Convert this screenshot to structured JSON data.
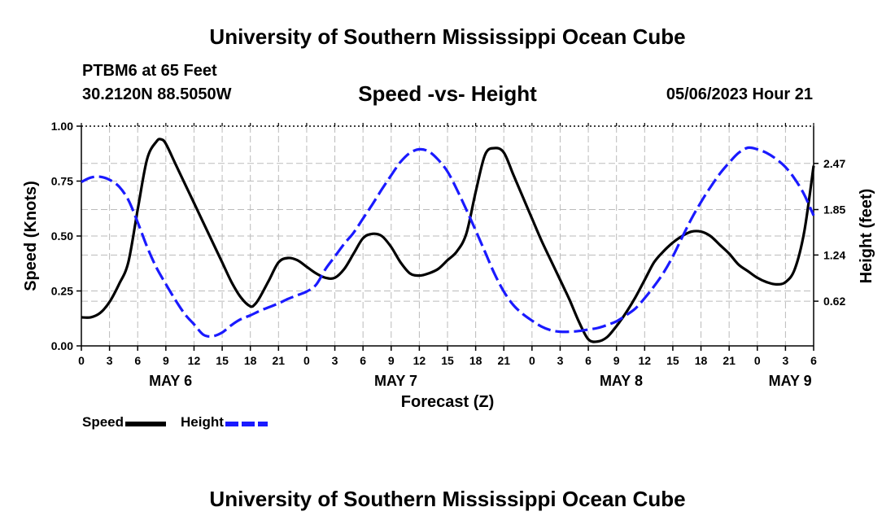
{
  "header": {
    "title": "University of Southern Mississippi Ocean Cube",
    "station": "PTBM6 at 65 Feet",
    "coords": "30.2120N  88.5050W",
    "chart_title": "Speed -vs- Height",
    "timestamp": "05/06/2023 Hour 21"
  },
  "footer": {
    "title": "University of Southern Mississippi Ocean Cube"
  },
  "legend": {
    "speed_label": "Speed",
    "height_label": "Height"
  },
  "colors": {
    "speed": "#000000",
    "height": "#1a1aff",
    "grid": "#bbbbbb"
  },
  "chart_data": {
    "type": "line",
    "title": "Speed -vs- Height",
    "xlabel": "Forecast (Z)",
    "ylabel": "Speed (Knots)",
    "y2label": "Height (feet)",
    "xlim": [
      0,
      78
    ],
    "ylim": [
      0,
      1.0
    ],
    "y2lim": [
      0.02,
      2.97
    ],
    "x_ticks": [
      0,
      3,
      6,
      9,
      12,
      15,
      18,
      21,
      24,
      27,
      30,
      33,
      36,
      39,
      42,
      45,
      48,
      51,
      54,
      57,
      60,
      63,
      66,
      69,
      72,
      75,
      78
    ],
    "x_tick_labels": [
      "0",
      "3",
      "6",
      "9",
      "12",
      "15",
      "18",
      "21",
      "0",
      "3",
      "6",
      "9",
      "12",
      "15",
      "18",
      "21",
      "0",
      "3",
      "6",
      "9",
      "12",
      "15",
      "18",
      "21",
      "0",
      "3",
      "6"
    ],
    "day_labels": [
      {
        "x": 9.5,
        "label": "MAY 6"
      },
      {
        "x": 33.5,
        "label": "MAY 7"
      },
      {
        "x": 57.5,
        "label": "MAY 8"
      },
      {
        "x": 75.5,
        "label": "MAY 9"
      }
    ],
    "y_ticks": [
      0.0,
      0.25,
      0.5,
      0.75,
      1.0
    ],
    "y_tick_labels": [
      "0.00",
      "0.25",
      "0.50",
      "0.75",
      "1.00"
    ],
    "y2_ticks": [
      0.62,
      1.24,
      1.85,
      2.47
    ],
    "y2_tick_labels": [
      "0.62",
      "1.24",
      "1.85",
      "2.47"
    ],
    "series": [
      {
        "name": "Speed",
        "axis": "left",
        "style": "solid",
        "x": [
          0,
          1,
          2,
          3,
          4,
          5,
          6,
          7,
          8,
          8.5,
          9,
          10,
          11,
          12,
          13,
          14,
          15,
          16,
          17,
          18,
          18.5,
          19,
          20,
          21,
          22,
          23,
          24,
          25,
          26,
          27,
          28,
          29,
          30,
          31,
          32,
          33,
          34,
          35,
          36,
          37,
          38,
          39,
          40,
          41,
          42,
          43,
          44,
          45,
          46,
          47,
          48,
          49,
          50,
          51,
          52,
          53,
          54,
          55,
          56,
          57,
          58,
          59,
          60,
          61,
          62,
          63,
          64,
          65,
          66,
          67,
          68,
          69,
          70,
          71,
          72,
          73,
          74,
          75,
          76,
          77,
          78
        ],
        "values": [
          0.13,
          0.13,
          0.15,
          0.2,
          0.28,
          0.38,
          0.62,
          0.85,
          0.93,
          0.94,
          0.92,
          0.83,
          0.74,
          0.65,
          0.56,
          0.47,
          0.38,
          0.29,
          0.22,
          0.18,
          0.19,
          0.22,
          0.3,
          0.38,
          0.4,
          0.39,
          0.36,
          0.33,
          0.31,
          0.31,
          0.35,
          0.42,
          0.49,
          0.51,
          0.5,
          0.45,
          0.38,
          0.33,
          0.32,
          0.33,
          0.35,
          0.39,
          0.43,
          0.51,
          0.7,
          0.87,
          0.9,
          0.88,
          0.78,
          0.68,
          0.58,
          0.48,
          0.39,
          0.3,
          0.21,
          0.11,
          0.03,
          0.02,
          0.04,
          0.09,
          0.15,
          0.22,
          0.3,
          0.38,
          0.43,
          0.47,
          0.5,
          0.52,
          0.52,
          0.5,
          0.46,
          0.42,
          0.37,
          0.34,
          0.31,
          0.29,
          0.28,
          0.29,
          0.35,
          0.52,
          0.82
        ]
      },
      {
        "name": "Height",
        "axis": "right",
        "style": "dashed",
        "x": [
          0,
          1,
          2,
          3,
          4,
          5,
          6,
          7,
          8,
          9,
          10,
          11,
          12,
          13,
          14,
          15,
          16,
          17,
          18,
          19,
          20,
          21,
          22,
          23,
          24,
          25,
          26,
          27,
          28,
          29,
          30,
          31,
          32,
          33,
          34,
          35,
          36,
          37,
          38,
          39,
          40,
          41,
          42,
          43,
          44,
          45,
          46,
          47,
          48,
          49,
          50,
          51,
          52,
          53,
          54,
          55,
          56,
          57,
          58,
          59,
          60,
          61,
          62,
          63,
          64,
          65,
          66,
          67,
          68,
          69,
          70,
          71,
          72,
          73,
          74,
          75,
          76,
          77,
          78
        ],
        "values": [
          2.22,
          2.28,
          2.29,
          2.25,
          2.16,
          1.98,
          1.68,
          1.35,
          1.07,
          0.85,
          0.64,
          0.45,
          0.31,
          0.17,
          0.15,
          0.2,
          0.3,
          0.38,
          0.43,
          0.49,
          0.54,
          0.59,
          0.65,
          0.7,
          0.75,
          0.84,
          1.05,
          1.22,
          1.39,
          1.54,
          1.73,
          1.92,
          2.12,
          2.31,
          2.49,
          2.61,
          2.66,
          2.63,
          2.52,
          2.36,
          2.12,
          1.85,
          1.57,
          1.28,
          0.99,
          0.75,
          0.57,
          0.45,
          0.36,
          0.28,
          0.23,
          0.21,
          0.21,
          0.22,
          0.24,
          0.26,
          0.3,
          0.35,
          0.43,
          0.52,
          0.66,
          0.82,
          1.0,
          1.22,
          1.48,
          1.73,
          1.95,
          2.15,
          2.33,
          2.48,
          2.61,
          2.68,
          2.66,
          2.61,
          2.53,
          2.42,
          2.26,
          2.05,
          1.77
        ]
      }
    ]
  }
}
